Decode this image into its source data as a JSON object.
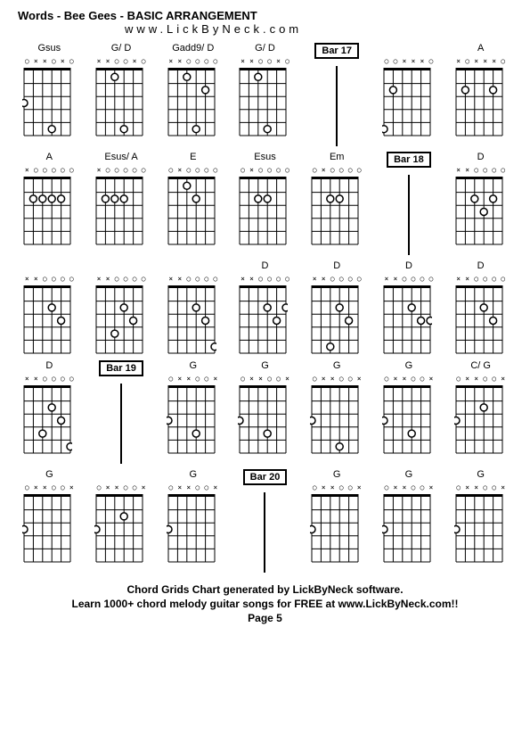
{
  "header": {
    "title": "Words - Bee Gees - BASIC ARRANGEMENT",
    "subtitle": "www.LickByNeck.com"
  },
  "footer": {
    "line1": "Chord Grids Chart generated by LickByNeck software.",
    "line2": "Learn 1000+ chord melody guitar songs for FREE at www.LickByNeck.com!!",
    "page": "Page 5"
  },
  "chord_style": {
    "strings": 6,
    "frets": 5,
    "width": 56,
    "height": 80,
    "line_color": "#000000",
    "dot_color": "#000000",
    "open_color": "#000000"
  },
  "cells": [
    {
      "type": "chord",
      "label": "Gsus",
      "markers": [
        "",
        "x",
        "x",
        "",
        "x",
        ""
      ],
      "dots": [
        [
          0,
          2
        ],
        [
          3,
          4
        ]
      ]
    },
    {
      "type": "chord",
      "label": "G/ D",
      "markers": [
        "x",
        "x",
        "",
        "",
        "x",
        ""
      ],
      "dots": [
        [
          2,
          0
        ],
        [
          3,
          4
        ]
      ]
    },
    {
      "type": "chord",
      "label": "Gadd9/ D",
      "markers": [
        "x",
        "x",
        "",
        "",
        "",
        ""
      ],
      "dots": [
        [
          2,
          0
        ],
        [
          4,
          1
        ],
        [
          3,
          4
        ]
      ]
    },
    {
      "type": "chord",
      "label": "G/ D",
      "markers": [
        "x",
        "x",
        "",
        "",
        "x",
        ""
      ],
      "dots": [
        [
          2,
          0
        ],
        [
          3,
          4
        ]
      ]
    },
    {
      "type": "bar",
      "label": "Bar 17"
    },
    {
      "type": "chord",
      "label": "",
      "markers": [
        "",
        "",
        "x",
        "x",
        "x",
        ""
      ],
      "dots": [
        [
          0,
          4
        ],
        [
          1,
          1
        ]
      ]
    },
    {
      "type": "chord",
      "label": "A",
      "markers": [
        "x",
        "",
        "x",
        "x",
        "x",
        ""
      ],
      "dots": [
        [
          1,
          1
        ],
        [
          4,
          1
        ]
      ]
    },
    {
      "type": "chord",
      "label": "A",
      "markers": [
        "x",
        "",
        "",
        "",
        "",
        ""
      ],
      "dots": [
        [
          1,
          1
        ],
        [
          2,
          1
        ],
        [
          3,
          1
        ],
        [
          4,
          1
        ]
      ]
    },
    {
      "type": "chord",
      "label": "Esus/ A",
      "markers": [
        "x",
        "",
        "",
        "",
        "",
        ""
      ],
      "dots": [
        [
          1,
          1
        ],
        [
          2,
          1
        ],
        [
          3,
          1
        ]
      ]
    },
    {
      "type": "chord",
      "label": "E",
      "markers": [
        "",
        "x",
        "",
        "",
        "",
        ""
      ],
      "dots": [
        [
          2,
          0
        ],
        [
          3,
          1
        ]
      ]
    },
    {
      "type": "chord",
      "label": "Esus",
      "markers": [
        "",
        "x",
        "",
        "",
        "",
        ""
      ],
      "dots": [
        [
          2,
          1
        ],
        [
          3,
          1
        ]
      ]
    },
    {
      "type": "chord",
      "label": "Em",
      "markers": [
        "",
        "x",
        "",
        "",
        "",
        ""
      ],
      "dots": [
        [
          2,
          1
        ],
        [
          3,
          1
        ]
      ]
    },
    {
      "type": "bar",
      "label": "Bar 18"
    },
    {
      "type": "chord",
      "label": "D",
      "markers": [
        "x",
        "x",
        "",
        "",
        "",
        ""
      ],
      "dots": [
        [
          2,
          1
        ],
        [
          3,
          2
        ],
        [
          4,
          1
        ]
      ]
    },
    {
      "type": "chord",
      "label": "",
      "markers": [
        "x",
        "x",
        "",
        "",
        "",
        ""
      ],
      "dots": [
        [
          3,
          1
        ],
        [
          4,
          2
        ]
      ]
    },
    {
      "type": "chord",
      "label": "",
      "markers": [
        "x",
        "x",
        "",
        "",
        "",
        ""
      ],
      "dots": [
        [
          3,
          1
        ],
        [
          4,
          2
        ],
        [
          2,
          3
        ]
      ]
    },
    {
      "type": "chord",
      "label": "",
      "markers": [
        "x",
        "x",
        "",
        "",
        "",
        ""
      ],
      "dots": [
        [
          3,
          1
        ],
        [
          4,
          2
        ],
        [
          5,
          4
        ]
      ]
    },
    {
      "type": "chord",
      "label": "D",
      "markers": [
        "x",
        "x",
        "",
        "",
        "",
        ""
      ],
      "dots": [
        [
          3,
          1
        ],
        [
          4,
          2
        ],
        [
          5,
          1
        ]
      ]
    },
    {
      "type": "chord",
      "label": "D",
      "markers": [
        "x",
        "x",
        "",
        "",
        "",
        ""
      ],
      "dots": [
        [
          3,
          1
        ],
        [
          4,
          2
        ],
        [
          2,
          4
        ]
      ]
    },
    {
      "type": "chord",
      "label": "D",
      "markers": [
        "x",
        "x",
        "",
        "",
        "",
        ""
      ],
      "dots": [
        [
          3,
          1
        ],
        [
          4,
          2
        ],
        [
          5,
          2
        ]
      ]
    },
    {
      "type": "chord",
      "label": "D",
      "markers": [
        "x",
        "x",
        "",
        "",
        "",
        ""
      ],
      "dots": [
        [
          3,
          1
        ],
        [
          4,
          2
        ]
      ]
    },
    {
      "type": "chord",
      "label": "D",
      "markers": [
        "x",
        "x",
        "",
        "",
        "",
        ""
      ],
      "dots": [
        [
          3,
          1
        ],
        [
          4,
          2
        ],
        [
          2,
          3
        ],
        [
          5,
          4
        ]
      ]
    },
    {
      "type": "bar",
      "label": "Bar 19"
    },
    {
      "type": "chord",
      "label": "G",
      "markers": [
        "",
        "x",
        "x",
        "",
        "",
        "x"
      ],
      "dots": [
        [
          0,
          2
        ],
        [
          3,
          3
        ]
      ]
    },
    {
      "type": "chord",
      "label": "G",
      "markers": [
        "",
        "x",
        "x",
        "",
        "",
        "x"
      ],
      "dots": [
        [
          0,
          2
        ],
        [
          3,
          3
        ]
      ]
    },
    {
      "type": "chord",
      "label": "G",
      "markers": [
        "",
        "x",
        "x",
        "",
        "",
        "x"
      ],
      "dots": [
        [
          0,
          2
        ],
        [
          3,
          4
        ]
      ]
    },
    {
      "type": "chord",
      "label": "G",
      "markers": [
        "",
        "x",
        "x",
        "",
        "",
        "x"
      ],
      "dots": [
        [
          0,
          2
        ],
        [
          3,
          3
        ]
      ]
    },
    {
      "type": "chord",
      "label": "C/ G",
      "markers": [
        "",
        "x",
        "x",
        "",
        "",
        "x"
      ],
      "dots": [
        [
          0,
          2
        ],
        [
          3,
          1
        ]
      ]
    },
    {
      "type": "chord",
      "label": "G",
      "markers": [
        "",
        "x",
        "x",
        "",
        "",
        "x"
      ],
      "dots": [
        [
          0,
          2
        ]
      ]
    },
    {
      "type": "chord",
      "label": "",
      "markers": [
        "",
        "x",
        "x",
        "",
        "",
        "x"
      ],
      "dots": [
        [
          0,
          2
        ],
        [
          3,
          1
        ]
      ]
    },
    {
      "type": "chord",
      "label": "G",
      "markers": [
        "",
        "x",
        "x",
        "",
        "",
        "x"
      ],
      "dots": [
        [
          0,
          2
        ]
      ]
    },
    {
      "type": "bar",
      "label": "Bar 20"
    },
    {
      "type": "chord",
      "label": "G",
      "markers": [
        "",
        "x",
        "x",
        "",
        "",
        "x"
      ],
      "dots": [
        [
          0,
          2
        ]
      ]
    },
    {
      "type": "chord",
      "label": "G",
      "markers": [
        "",
        "x",
        "x",
        "",
        "",
        "x"
      ],
      "dots": [
        [
          0,
          2
        ]
      ]
    },
    {
      "type": "chord",
      "label": "G",
      "markers": [
        "",
        "x",
        "x",
        "",
        "",
        "x"
      ],
      "dots": [
        [
          0,
          2
        ]
      ]
    }
  ]
}
